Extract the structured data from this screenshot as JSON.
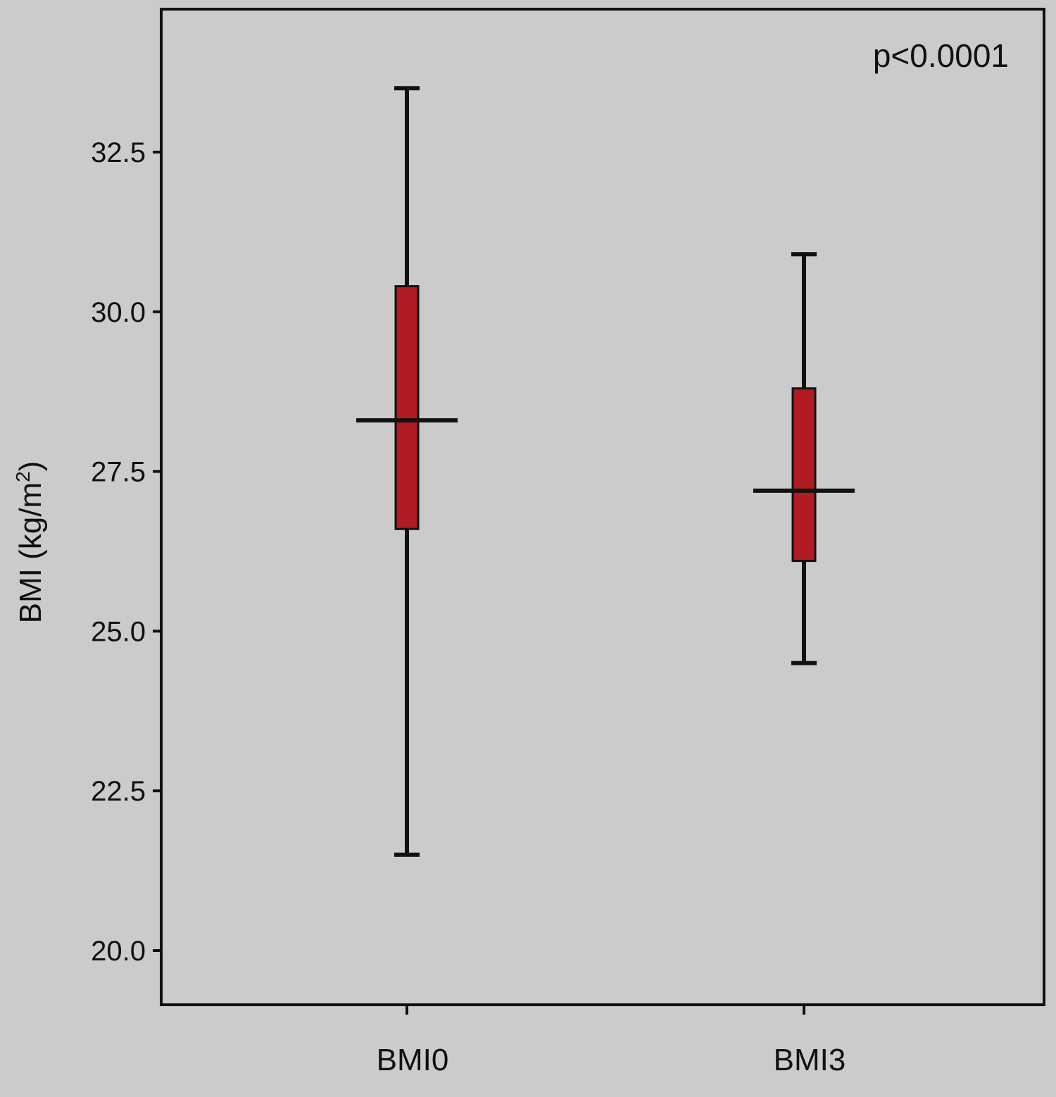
{
  "chart_data": {
    "type": "box",
    "title": "",
    "xlabel": "",
    "ylabel": {
      "prefix": "BMI (kg/m",
      "superscript": "2",
      "suffix": ")"
    },
    "annotation": "p<0.0001",
    "categories": [
      "BMI0",
      "BMI3"
    ],
    "ylim": [
      19.2,
      34.8
    ],
    "yticks": [
      20.0,
      22.5,
      25.0,
      27.5,
      30.0,
      32.5
    ],
    "ytick_labels": [
      "20.0",
      "22.5",
      "25.0",
      "27.5",
      "30.0",
      "32.5"
    ],
    "boxes": [
      {
        "category": "BMI0",
        "min": 21.5,
        "q1": 26.6,
        "median": 28.3,
        "q3": 30.4,
        "max": 33.5
      },
      {
        "category": "BMI3",
        "min": 24.5,
        "q1": 26.1,
        "median": 27.2,
        "q3": 28.8,
        "max": 30.9
      }
    ],
    "grid": false,
    "colors": {
      "box_fill": "#b01c22",
      "line": "#111111",
      "background": "#cbcbcb"
    }
  }
}
